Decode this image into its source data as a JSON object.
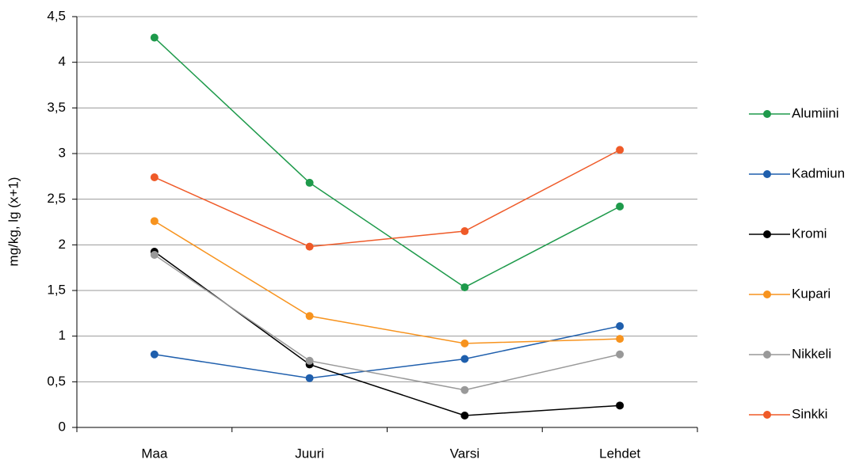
{
  "chart_data": {
    "type": "line",
    "y_label": "mg/kg, lg (x+1)",
    "categories": [
      "Maa",
      "Juuri",
      "Varsi",
      "Lehdet"
    ],
    "series": [
      {
        "name": "Alumiini",
        "color": "#1e9a4b",
        "values": [
          4.27,
          2.68,
          1.535,
          2.42
        ]
      },
      {
        "name": "Kadmiun",
        "color": "#1f5fad",
        "values": [
          0.8,
          0.54,
          0.75,
          1.11
        ]
      },
      {
        "name": "Kromi",
        "color": "#000000",
        "values": [
          1.925,
          0.69,
          0.13,
          0.24
        ]
      },
      {
        "name": "Kupari",
        "color": "#f7931e",
        "values": [
          2.26,
          1.22,
          0.92,
          0.97
        ]
      },
      {
        "name": "Nikkeli",
        "color": "#999999",
        "values": [
          1.89,
          0.73,
          0.41,
          0.8
        ]
      },
      {
        "name": "Sinkki",
        "color": "#ef5a28",
        "values": [
          2.74,
          1.98,
          2.15,
          3.04
        ]
      }
    ],
    "ylim": [
      0,
      4.5
    ],
    "yticks": [
      0,
      {
        "value": 0.5,
        "label": "0,5"
      },
      1,
      {
        "value": 1.5,
        "label": "1,5"
      },
      2,
      {
        "value": 2.5,
        "label": "2,5"
      },
      3,
      {
        "value": 3.5,
        "label": "3,5"
      },
      4,
      {
        "value": 4.5,
        "label": "4,5"
      }
    ],
    "grid": true,
    "legend": "right"
  }
}
